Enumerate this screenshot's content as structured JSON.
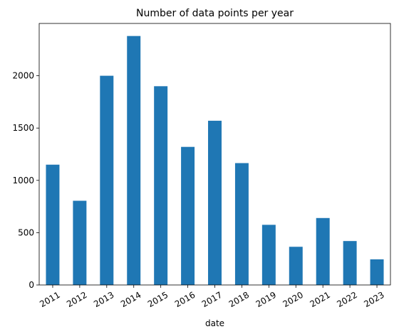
{
  "chart_data": {
    "type": "bar",
    "title": "Number of data points per year",
    "xlabel": "date",
    "ylabel": "",
    "categories": [
      "2011",
      "2012",
      "2013",
      "2014",
      "2015",
      "2016",
      "2017",
      "2018",
      "2019",
      "2020",
      "2021",
      "2022",
      "2023"
    ],
    "values": [
      1150,
      805,
      2000,
      2380,
      1900,
      1320,
      1570,
      1165,
      575,
      365,
      640,
      420,
      245
    ],
    "ylim": [
      0,
      2500
    ],
    "yticks": [
      0,
      500,
      1000,
      1500,
      2000
    ],
    "grid": false,
    "legend": "none",
    "bar_color": "#1f77b4"
  }
}
